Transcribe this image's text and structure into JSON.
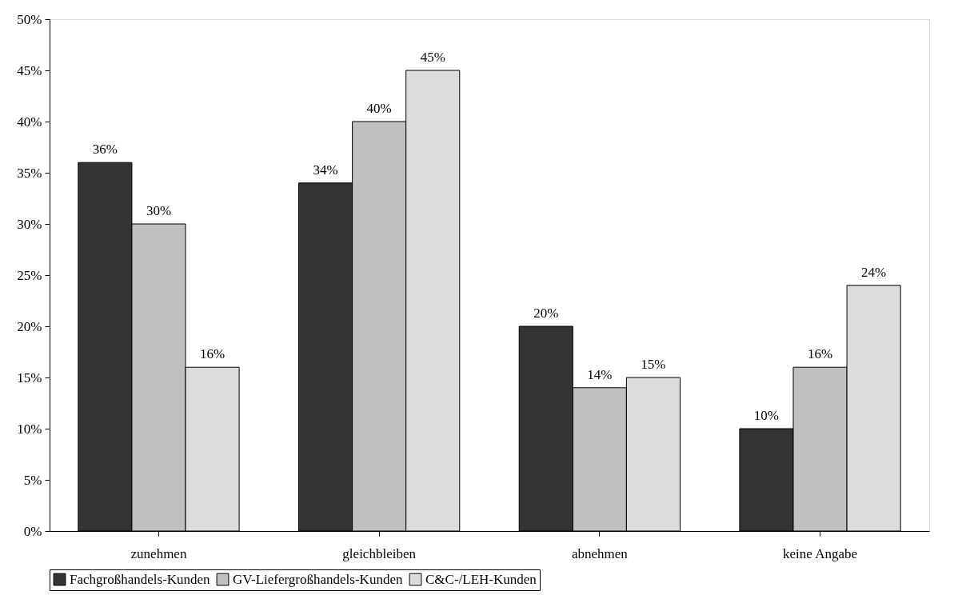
{
  "chart_data": {
    "type": "bar",
    "categories": [
      "zunehmen",
      "gleichbleiben",
      "abnehmen",
      "keine Angabe"
    ],
    "series": [
      {
        "name": "Fachgroßhandels-Kunden",
        "color": "#333333",
        "values": [
          36,
          34,
          20,
          10
        ],
        "value_labels": [
          "36%",
          "34%",
          "20%",
          "10%"
        ]
      },
      {
        "name": "GV-Liefergroßhandels-Kunden",
        "color": "#c0c0c0",
        "values": [
          30,
          40,
          14,
          16
        ],
        "value_labels": [
          "30%",
          "40%",
          "14%",
          "16%"
        ]
      },
      {
        "name": "C&C-/LEH-Kunden",
        "color": "#dcdcdc",
        "values": [
          16,
          45,
          15,
          24
        ],
        "value_labels": [
          "16%",
          "45%",
          "15%",
          "24%"
        ]
      }
    ],
    "ylim": [
      0,
      50
    ],
    "yticks": [
      {
        "value": 0,
        "label": "0%"
      },
      {
        "value": 5,
        "label": "5%"
      },
      {
        "value": 10,
        "label": "10%"
      },
      {
        "value": 15,
        "label": "15%"
      },
      {
        "value": 20,
        "label": "20%"
      },
      {
        "value": 25,
        "label": "25%"
      },
      {
        "value": 30,
        "label": "30%"
      },
      {
        "value": 35,
        "label": "35%"
      },
      {
        "value": 40,
        "label": "40%"
      },
      {
        "value": 45,
        "label": "45%"
      },
      {
        "value": 50,
        "label": "50%"
      }
    ],
    "grid": false,
    "legend": "bottom"
  }
}
